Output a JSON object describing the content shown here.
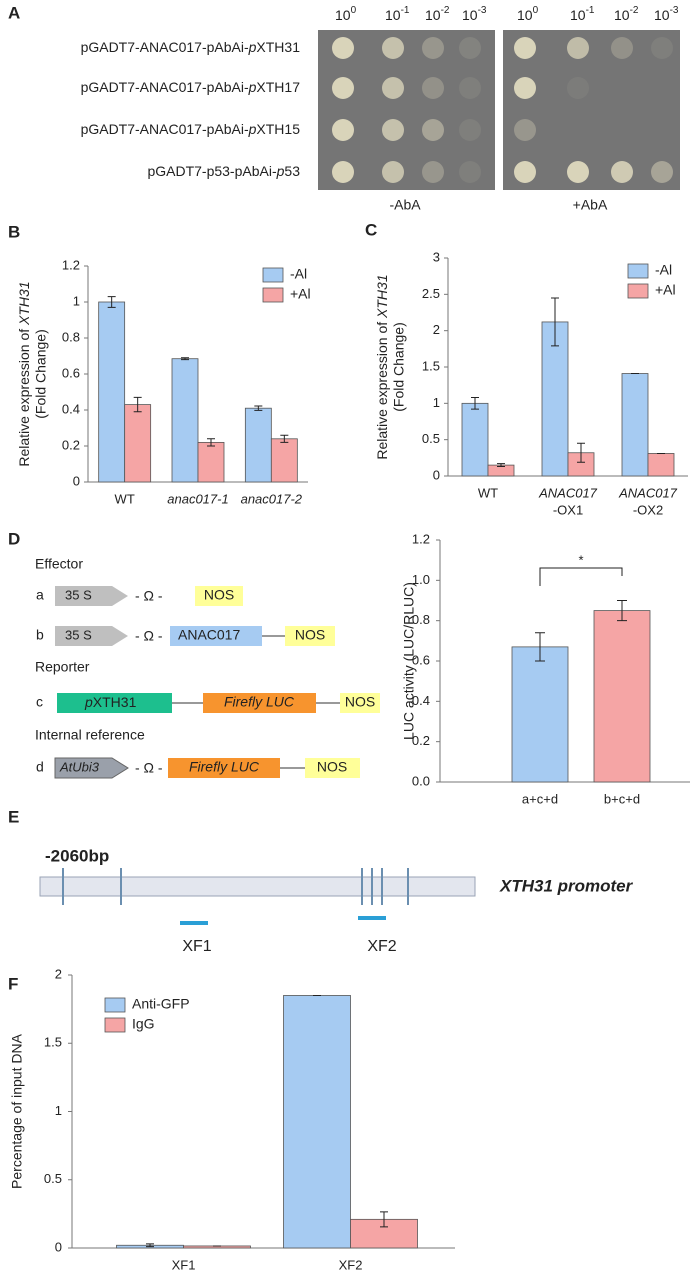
{
  "panel_labels": [
    "A",
    "B",
    "C",
    "D",
    "E",
    "F"
  ],
  "panel_a": {
    "dilution_base": "10",
    "dilution_exponents": [
      "0",
      "-1",
      "-2",
      "-3"
    ],
    "rows": [
      {
        "prefix": "pGADT7-ANAC017-pAbAi-",
        "italic": "p",
        "suffix": "XTH31"
      },
      {
        "prefix": "pGADT7-ANAC017-pAbAi-",
        "italic": "p",
        "suffix": "XTH17"
      },
      {
        "prefix": "pGADT7-ANAC017-pAbAi-",
        "italic": "p",
        "suffix": "XTH15"
      },
      {
        "prefix": "pGADT7-p53-pAbAi-",
        "italic": "p",
        "suffix": "53"
      }
    ],
    "conditions": [
      "-AbA",
      "+AbA"
    ]
  },
  "chart_data": [
    {
      "type": "bar",
      "y_label": {
        "text": "Relative expression of ",
        "italic": "XTH31",
        "line2": "(Fold Change)"
      },
      "categories": [
        "WT",
        "anac017-1",
        "anac017-2"
      ],
      "italic_categories": [
        false,
        true,
        true
      ],
      "series": [
        {
          "name": "-Al",
          "color": "#a6cbf2",
          "values": [
            1.0,
            0.685,
            0.41
          ],
          "errors": [
            0.03,
            0.005,
            0.012
          ]
        },
        {
          "name": "+Al",
          "color": "#f5a5a5",
          "values": [
            0.43,
            0.22,
            0.24
          ],
          "errors": [
            0.04,
            0.02,
            0.02
          ]
        }
      ],
      "ylim": [
        0,
        1.2
      ],
      "yticks": [
        0,
        0.2,
        0.4,
        0.6,
        0.8,
        1,
        1.2
      ],
      "legend": "upper right"
    },
    {
      "type": "bar",
      "y_label": {
        "text": "Relative expression of ",
        "italic": "XTH31",
        "line2": "(Fold Change)"
      },
      "categories": [
        "WT",
        "ANAC017",
        "ANAC017"
      ],
      "category_suffixes": [
        null,
        "-OX1",
        "-OX2"
      ],
      "italic_categories": [
        false,
        true,
        true
      ],
      "series": [
        {
          "name": "-Al",
          "color": "#a6cbf2",
          "values": [
            1.0,
            2.12,
            1.41
          ],
          "errors": [
            0.08,
            0.33,
            0
          ]
        },
        {
          "name": "+Al",
          "color": "#f5a5a5",
          "values": [
            0.15,
            0.32,
            0.31
          ],
          "errors": [
            0.02,
            0.13,
            0
          ]
        }
      ],
      "ylim": [
        0,
        3
      ],
      "yticks": [
        0,
        0.5,
        1,
        1.5,
        2,
        2.5,
        3
      ],
      "legend": "upper right"
    },
    {
      "type": "bar",
      "y_label": "LUC activity (LUC/RLUC)",
      "categories": [
        "a+c+d",
        "b+c+d"
      ],
      "values": [
        0.67,
        0.85
      ],
      "errors": [
        0.07,
        0.05
      ],
      "colors": [
        "#a6cbf2",
        "#f5a5a5"
      ],
      "annotation": "*",
      "ylim": [
        0,
        1.2
      ],
      "yticks": [
        {
          "value": 0,
          "label": "0.0"
        },
        0.2,
        0.4,
        0.6,
        0.8,
        {
          "value": 1,
          "label": "1.0"
        },
        1.2
      ]
    },
    {
      "type": "bar",
      "y_label": "Percentage of input DNA",
      "categories": [
        "XF1",
        "XF2"
      ],
      "series": [
        {
          "name": "Anti-GFP",
          "color": "#a6cbf2",
          "values": [
            0.02,
            1.85
          ],
          "errors": [
            0.01,
            0
          ]
        },
        {
          "name": "IgG",
          "color": "#f5a5a5",
          "values": [
            0.015,
            0.21
          ],
          "errors": [
            0,
            0.055
          ]
        }
      ],
      "ylim": [
        0,
        2
      ],
      "yticks": [
        0,
        0.5,
        1,
        1.5,
        2
      ],
      "legend": "upper left"
    }
  ],
  "panel_d_diagram": {
    "sections": [
      "Effector",
      "Reporter",
      "Internal reference"
    ],
    "row_letters": [
      "a",
      "b",
      "c",
      "d"
    ],
    "promoter_35s": "35 S",
    "omega": "- Ω -",
    "terminator": "NOS",
    "effector_gene": "ANAC017",
    "reporter_promoter": {
      "italic": "p",
      "text": "XTH31"
    },
    "luc": "Firefly LUC",
    "ubi": "AtUbi3"
  },
  "panel_e": {
    "start": "-2060bp",
    "promoter": "XTH31 promoter",
    "fragments": [
      "XF1",
      "XF2"
    ]
  }
}
